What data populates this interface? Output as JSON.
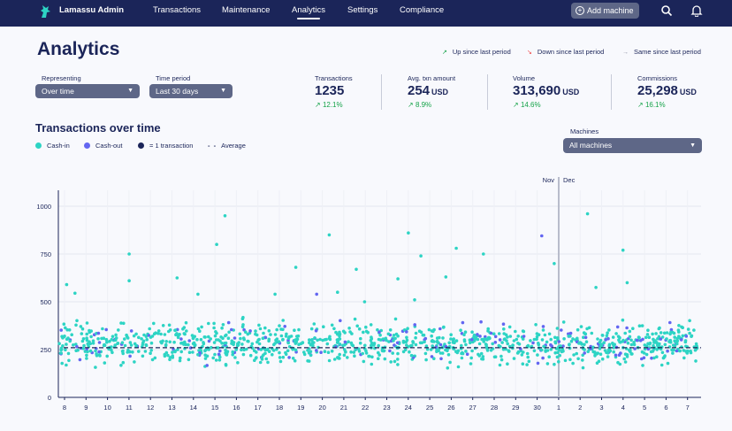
{
  "app": {
    "title": "Lamassu Admin"
  },
  "nav": [
    {
      "label": "Transactions"
    },
    {
      "label": "Maintenance"
    },
    {
      "label": "Analytics",
      "active": true
    },
    {
      "label": "Settings"
    },
    {
      "label": "Compliance"
    }
  ],
  "header": {
    "add_machine_label": "Add machine"
  },
  "page": {
    "title": "Analytics"
  },
  "period_legend": {
    "up": "Up since last period",
    "down": "Down since last period",
    "same": "Same since last period"
  },
  "filters": {
    "representing_label": "Representing",
    "representing_value": "Over time",
    "period_label": "Time period",
    "period_value": "Last 30 days",
    "machines_label": "Machines",
    "machines_value": "All machines"
  },
  "stats": [
    {
      "label": "Transactions",
      "value": "1235",
      "unit": "",
      "change": "12.1%"
    },
    {
      "label": "Avg. txn amount",
      "value": "254",
      "unit": "USD",
      "change": "8.9%"
    },
    {
      "label": "Volume",
      "value": "313,690",
      "unit": "USD",
      "change": "14.6%"
    },
    {
      "label": "Commissions",
      "value": "25,298",
      "unit": "USD",
      "change": "16.1%"
    }
  ],
  "chart": {
    "title": "Transactions over time",
    "legend": {
      "cash_in": "Cash-in",
      "cash_out": "Cash-out",
      "one_tx": "= 1 transaction",
      "average": "Average"
    },
    "month_labels": [
      "Nov",
      "Dec"
    ]
  },
  "colors": {
    "navy": "#1b2559",
    "cash_in": "#2dd4c4",
    "cash_out": "#6366f1",
    "up": "#16a34a",
    "down": "#ef4444",
    "same": "#8b8fa3"
  },
  "chart_data": {
    "type": "scatter",
    "title": "Transactions over time",
    "xlabel": "",
    "ylabel": "",
    "x_ticks": [
      "8",
      "9",
      "10",
      "11",
      "12",
      "13",
      "14",
      "15",
      "16",
      "17",
      "18",
      "19",
      "20",
      "21",
      "22",
      "23",
      "24",
      "25",
      "26",
      "27",
      "28",
      "29",
      "30",
      "1",
      "2",
      "3",
      "4",
      "5",
      "6",
      "7"
    ],
    "ylim": [
      0,
      1000
    ],
    "y_ticks": [
      0,
      250,
      500,
      750,
      1000
    ],
    "average": 260,
    "series": [
      {
        "name": "Cash-in",
        "points": "approx. 1100 transactions, mostly between 100 and 450 USD; outliers include 960, 950, 870, 860, 800, 780, 750, 740, 700, 690, 680, 640, 630, 620, 600"
      },
      {
        "name": "Cash-out",
        "points": "approx. 135 transactions, mostly between 150 and 400 USD; outliers include 850, 550, 500"
      }
    ],
    "grid": true
  }
}
